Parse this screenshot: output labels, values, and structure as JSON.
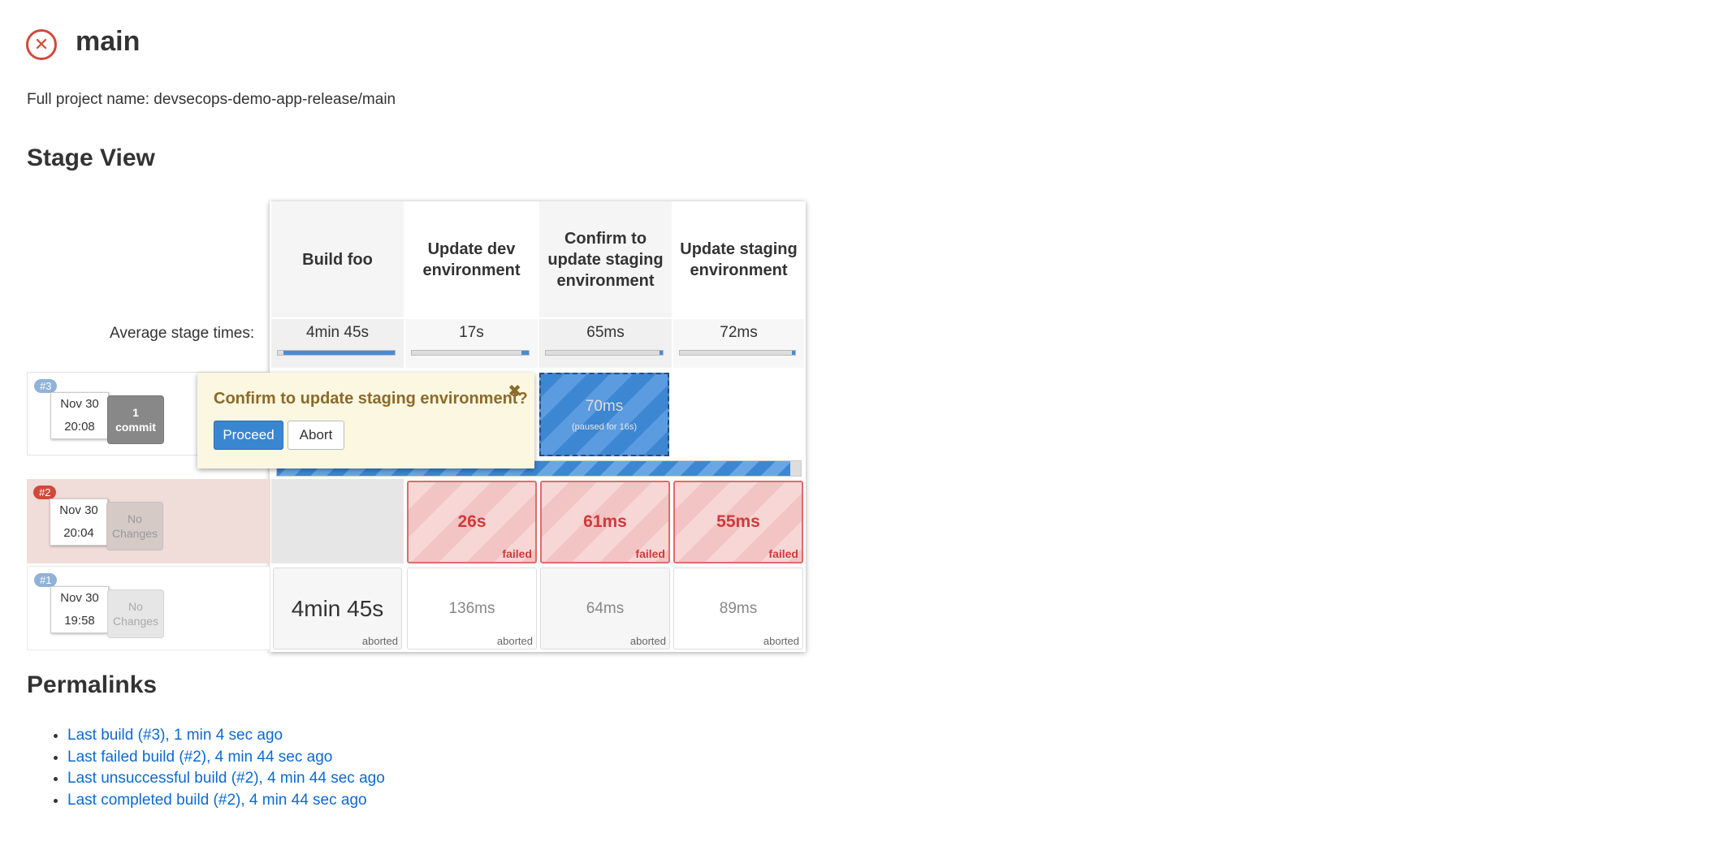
{
  "header": {
    "title": "main",
    "status_icon": "failed-x-icon",
    "full_name": "Full project name: devsecops-demo-app-release/main"
  },
  "stage_view": {
    "heading": "Stage View",
    "avg_label": "Average stage times:",
    "columns": [
      {
        "name": "Build foo",
        "avg": "4min 45s",
        "avg_fill": 0.95
      },
      {
        "name": "Update dev environment",
        "avg": "17s",
        "avg_fill": 0.06
      },
      {
        "name": "Confirm to update staging environment",
        "avg": "65ms",
        "avg_fill": 0.01
      },
      {
        "name": "Update staging environment",
        "avg": "72ms",
        "avg_fill": 0.01
      }
    ],
    "builds": [
      {
        "number": "#3",
        "date": "Nov 30",
        "time": "20:08",
        "changes": "1 commit",
        "cells": [
          {
            "value": "",
            "label": ""
          },
          {
            "value": "",
            "label": ""
          },
          {
            "value": "70ms",
            "sub": "(paused for 16s)"
          },
          {
            "value": "",
            "label": ""
          }
        ],
        "progress": 0.98
      },
      {
        "number": "#2",
        "date": "Nov 30",
        "time": "20:04",
        "changes": "No Changes",
        "cells": [
          {
            "value": "",
            "label": ""
          },
          {
            "value": "26s",
            "label": "failed"
          },
          {
            "value": "61ms",
            "label": "failed"
          },
          {
            "value": "55ms",
            "label": "failed"
          }
        ]
      },
      {
        "number": "#1",
        "date": "Nov 30",
        "time": "19:58",
        "changes": "No Changes",
        "cells": [
          {
            "value": "4min 45s",
            "label": "aborted"
          },
          {
            "value": "136ms",
            "label": "aborted"
          },
          {
            "value": "64ms",
            "label": "aborted"
          },
          {
            "value": "89ms",
            "label": "aborted"
          }
        ]
      }
    ],
    "popup": {
      "title": "Confirm to update staging environment?",
      "close": "✖",
      "proceed": "Proceed",
      "abort": "Abort"
    }
  },
  "permalinks": {
    "heading": "Permalinks",
    "items": [
      "Last build (#3), 1 min 4 sec ago",
      "Last failed build (#2), 4 min 44 sec ago",
      "Last unsuccessful build (#2), 4 min 44 sec ago",
      "Last completed build (#2), 4 min 44 sec ago"
    ]
  },
  "colors": {
    "failed": "#d03a3a",
    "link": "#0b6ad2",
    "proceed": "#3a87d1",
    "running": "#3a87d1"
  }
}
